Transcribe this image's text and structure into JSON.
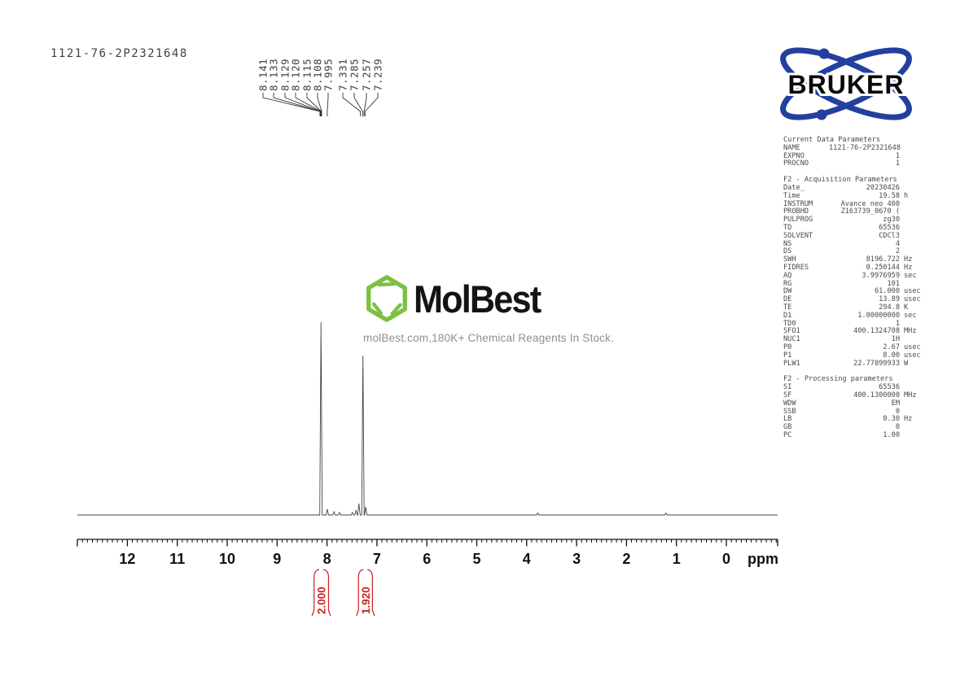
{
  "title": "1121-76-2P2321648",
  "colors": {
    "spectrum_line": "#454545",
    "peak_label_text": "#3c3c3c",
    "axis": "#111111",
    "integral_red": "#cc2020",
    "bruker_blue": "#23409e",
    "molbest_green": "#7cc142",
    "tagline_gray": "#8f8f8f"
  },
  "bruker": {
    "label": "BRUKER"
  },
  "watermark": {
    "brand": "MolBest",
    "tagline": "molBest.com,180K+ Chemical Reagents In Stock."
  },
  "parameters": {
    "sections": [
      {
        "header": "Current Data Parameters",
        "rows": [
          [
            "NAME",
            "1121-76-2P2321648",
            ""
          ],
          [
            "EXPNO",
            "1",
            ""
          ],
          [
            "PROCNO",
            "1",
            ""
          ]
        ]
      },
      {
        "header": "F2 - Acquisition Parameters",
        "rows": [
          [
            "Date_",
            "20230426",
            ""
          ],
          [
            "Time",
            "19.58",
            "h"
          ],
          [
            "INSTRUM",
            "Avance neo 400",
            ""
          ],
          [
            "PROBHD",
            "Z163739_0670 (",
            ""
          ],
          [
            "PULPROG",
            "zg30",
            ""
          ],
          [
            "TD",
            "65536",
            ""
          ],
          [
            "SOLVENT",
            "CDCl3",
            ""
          ],
          [
            "NS",
            "4",
            ""
          ],
          [
            "DS",
            "2",
            ""
          ],
          [
            "SWH",
            "8196.722",
            "Hz"
          ],
          [
            "FIDRES",
            "0.250144",
            "Hz"
          ],
          [
            "AQ",
            "3.9976959",
            "sec"
          ],
          [
            "RG",
            "101",
            ""
          ],
          [
            "DW",
            "61.000",
            "usec"
          ],
          [
            "DE",
            "13.89",
            "usec"
          ],
          [
            "TE",
            "294.8",
            "K"
          ],
          [
            "D1",
            "1.00000000",
            "sec"
          ],
          [
            "TD0",
            "1",
            ""
          ],
          [
            "SFO1",
            "400.1324708",
            "MHz"
          ],
          [
            "NUC1",
            "1H",
            ""
          ],
          [
            "P0",
            "2.67",
            "usec"
          ],
          [
            "P1",
            "8.00",
            "usec"
          ],
          [
            "PLW1",
            "22.77899933",
            "W"
          ]
        ]
      },
      {
        "header": "F2 - Processing parameters",
        "rows": [
          [
            "SI",
            "65536",
            ""
          ],
          [
            "SF",
            "400.1300000",
            "MHz"
          ],
          [
            "WDW",
            "EM",
            ""
          ],
          [
            "SSB",
            "0",
            ""
          ],
          [
            "LB",
            "0.30",
            "Hz"
          ],
          [
            "GB",
            "0",
            ""
          ],
          [
            "PC",
            "1.00",
            ""
          ]
        ]
      }
    ]
  },
  "chart_data": {
    "type": "line",
    "title": "1H NMR spectrum 1121-76-2P2321648",
    "xlabel": "ppm",
    "x_axis": {
      "min": -1.0,
      "max": 13.0,
      "inverted": true,
      "major_ticks": [
        12,
        11,
        10,
        9,
        8,
        7,
        6,
        5,
        4,
        3,
        2,
        1,
        0
      ],
      "minor_tick_interval": 0.1,
      "unit_label": "ppm"
    },
    "peak_labels": [
      "8.141",
      "8.133",
      "8.129",
      "8.120",
      "8.115",
      "8.108",
      "7.995",
      "7.331",
      "7.285",
      "7.257",
      "7.239"
    ],
    "peaks": [
      [
        8.12,
        1.0
      ],
      [
        7.995,
        0.03
      ],
      [
        7.86,
        0.017
      ],
      [
        7.75,
        0.013
      ],
      [
        7.49,
        0.013
      ],
      [
        7.42,
        0.025
      ],
      [
        7.36,
        0.059
      ],
      [
        7.28,
        0.827
      ],
      [
        7.225,
        0.042
      ],
      [
        3.78,
        0.01
      ],
      [
        1.21,
        0.01
      ]
    ],
    "integrals": [
      {
        "label": "2.000",
        "from_ppm": 8.26,
        "to_ppm": 7.97
      },
      {
        "label": "1.920",
        "from_ppm": 7.37,
        "to_ppm": 7.09
      }
    ]
  }
}
